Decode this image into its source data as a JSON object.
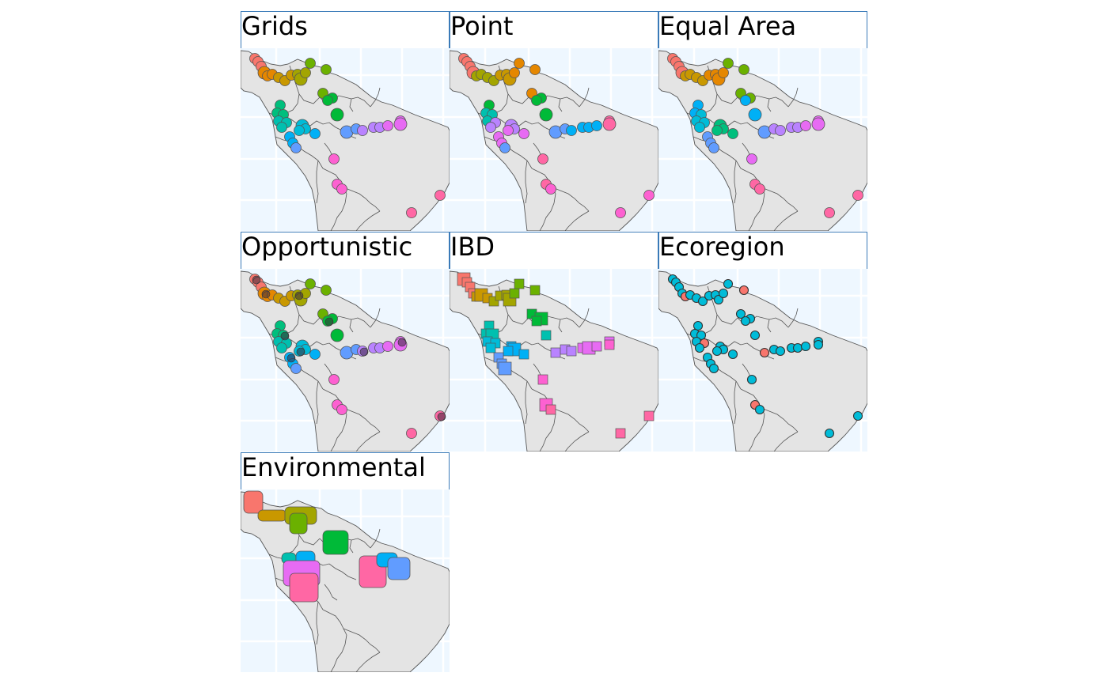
{
  "colors": {
    "ocean": "#eef7ff",
    "grid": "#ffffff",
    "land": "#e4e4e4",
    "border": "#555555",
    "strip_border": "#3a7ab8"
  },
  "panels": [
    {
      "title": "Grids"
    },
    {
      "title": "Point"
    },
    {
      "title": "Equal Area"
    },
    {
      "title": "Opportunistic"
    },
    {
      "title": "IBD"
    },
    {
      "title": "Ecoregion"
    },
    {
      "title": "Environmental"
    }
  ]
}
